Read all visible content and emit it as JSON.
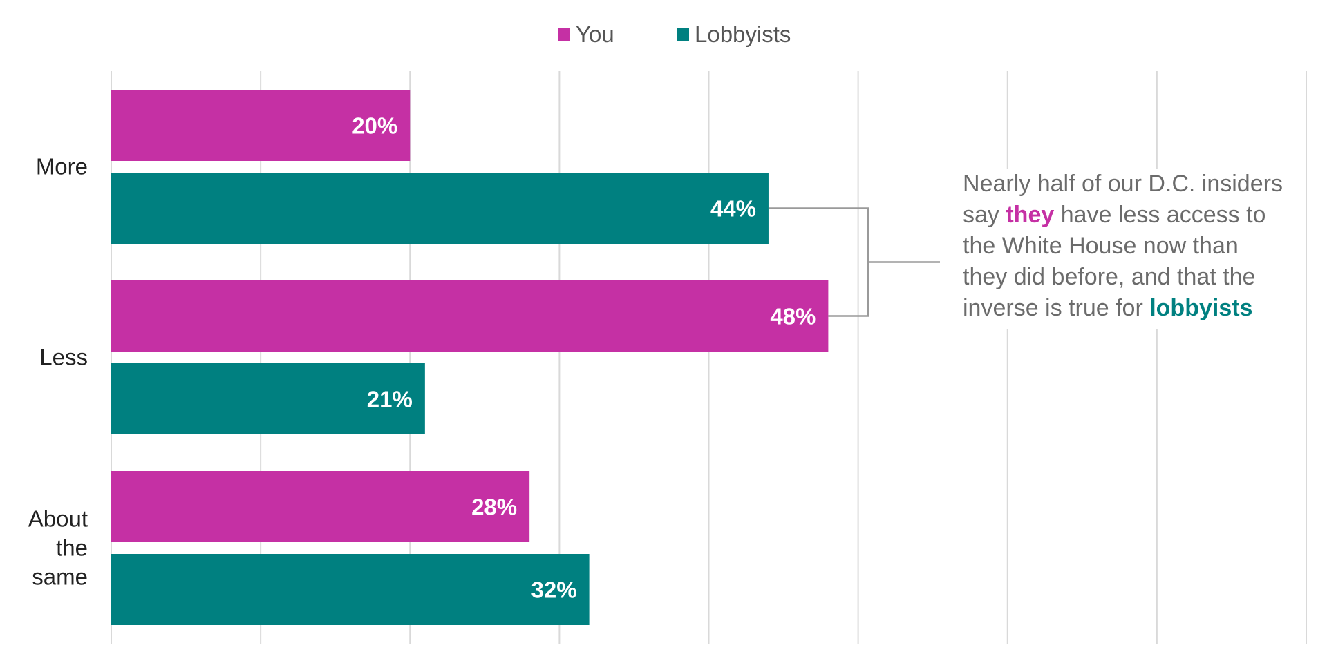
{
  "colors": {
    "you": "#c530a4",
    "lobbyists": "#008080",
    "grid": "#d9d9d9",
    "connector": "#9a9a9a"
  },
  "chart_data": {
    "type": "bar",
    "orientation": "horizontal",
    "categories": [
      "More",
      "Less",
      "About the same"
    ],
    "category_lines": [
      [
        "More"
      ],
      [
        "Less"
      ],
      [
        "About",
        "the",
        "same"
      ]
    ],
    "series": [
      {
        "name": "You",
        "values": [
          20,
          48,
          28
        ],
        "labels": [
          "20%",
          "48%",
          "28%"
        ]
      },
      {
        "name": "Lobbyists",
        "values": [
          44,
          21,
          32
        ],
        "labels": [
          "44%",
          "21%",
          "32%"
        ]
      }
    ],
    "xlim": [
      0,
      80
    ],
    "grid": true,
    "legend_position": "top"
  },
  "annotation": {
    "before_they": "Nearly half of our D.C. insiders say ",
    "they": "they",
    "middle": " have less access to the White House now than they did before, and that the inverse is true for ",
    "lobbyists": "lobbyists"
  }
}
